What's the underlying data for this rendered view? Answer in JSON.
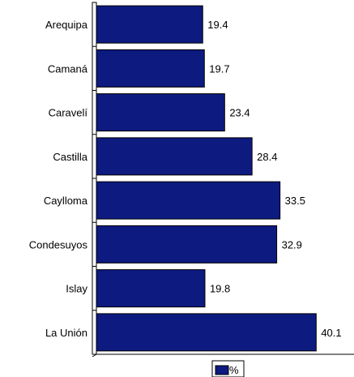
{
  "chart_data": {
    "type": "bar",
    "orientation": "horizontal",
    "categories": [
      "Arequipa",
      "Camaná",
      "Caravelí",
      "Castilla",
      "Caylloma",
      "Condesuyos",
      "Islay",
      "La Unión"
    ],
    "series": [
      {
        "name": "%",
        "values": [
          19.4,
          19.7,
          23.4,
          28.4,
          33.5,
          32.9,
          19.8,
          40.1
        ]
      }
    ],
    "xlim": [
      0,
      47
    ],
    "grid": false,
    "legend_position": "bottom-center",
    "colors": {
      "bar": "#0d1a80",
      "bar_edge": "#000000",
      "axis": "#000000"
    }
  }
}
